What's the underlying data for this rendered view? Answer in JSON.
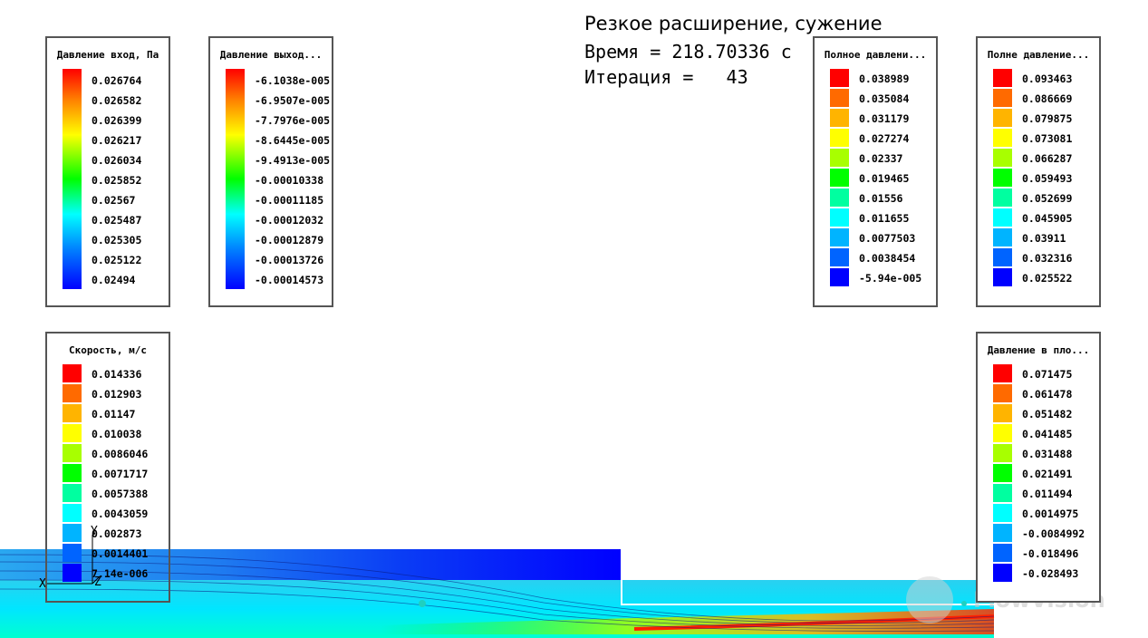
{
  "header": {
    "title": "Резкое расширение, сужение",
    "time_line": "Время = 218.70336 с",
    "iteration_line": "Итерация =   43"
  },
  "legends": {
    "inlet_pressure": {
      "title": "Давление вход, Па",
      "values": [
        "0.026764",
        "0.026582",
        "0.026399",
        "0.026217",
        "0.026034",
        "0.025852",
        "0.02567",
        "0.025487",
        "0.025305",
        "0.025122",
        "0.02494"
      ]
    },
    "outlet_pressure": {
      "title": "Давление выход...",
      "values": [
        "-6.1038e-005",
        "-6.9507e-005",
        "-7.7976e-005",
        "-8.6445e-005",
        "-9.4913e-005",
        "-0.00010338",
        "-0.00011185",
        "-0.00012032",
        "-0.00012879",
        "-0.00013726",
        "-0.00014573"
      ]
    },
    "total_pressure_1": {
      "title": "Полное давлени...",
      "values": [
        "0.038989",
        "0.035084",
        "0.031179",
        "0.027274",
        "0.02337",
        "0.019465",
        "0.01556",
        "0.011655",
        "0.0077503",
        "0.0038454",
        "-5.94e-005"
      ]
    },
    "total_pressure_2": {
      "title": "Полне давление...",
      "values": [
        "0.093463",
        "0.086669",
        "0.079875",
        "0.073081",
        "0.066287",
        "0.059493",
        "0.052699",
        "0.045905",
        "0.03911",
        "0.032316",
        "0.025522"
      ]
    },
    "velocity": {
      "title": "Скорость, м/с",
      "values": [
        "0.014336",
        "0.012903",
        "0.01147",
        "0.010038",
        "0.0086046",
        "0.0071717",
        "0.0057388",
        "0.0043059",
        "0.002873",
        "0.0014401",
        "7.14e-006"
      ]
    },
    "plane_pressure": {
      "title": "Давление в пло...",
      "values": [
        "0.071475",
        "0.061478",
        "0.051482",
        "0.041485",
        "0.031488",
        "0.021491",
        "0.011494",
        "0.0014975",
        "-0.0084992",
        "-0.018496",
        "-0.028493"
      ]
    }
  },
  "palette": [
    "#ff0000",
    "#ff6a00",
    "#ffb400",
    "#ffff00",
    "#a8ff00",
    "#00ff00",
    "#00ffa0",
    "#00ffff",
    "#00b4ff",
    "#0064ff",
    "#0000ff"
  ],
  "axes": {
    "x_label": "X",
    "y_label": "Y",
    "z_label": "Z"
  },
  "watermark": "FlowVision"
}
